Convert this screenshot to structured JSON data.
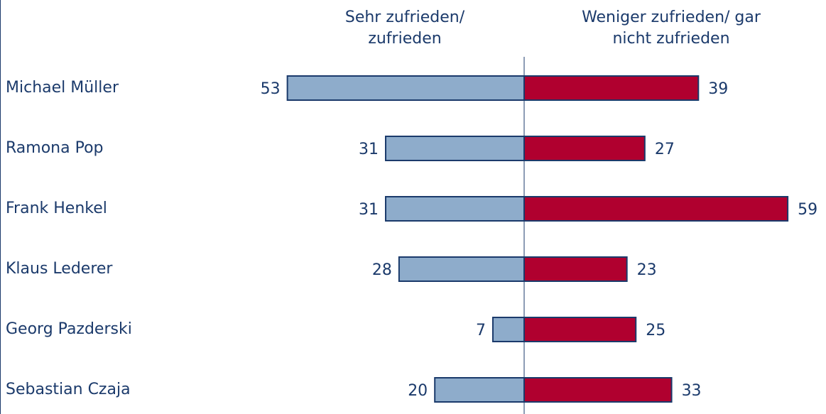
{
  "chart_data": {
    "type": "bar",
    "categories": [
      "Michael Müller",
      "Ramona Pop",
      "Frank Henkel",
      "Klaus Lederer",
      "Georg Pazderski",
      "Sebastian Czaja"
    ],
    "series": [
      {
        "name": "Sehr zufrieden/ zufrieden",
        "color": "#8eaccb",
        "values": [
          53,
          31,
          31,
          28,
          7,
          20
        ]
      },
      {
        "name": "Weniger zufrieden/ gar nicht zufrieden",
        "color": "#b0002f",
        "values": [
          39,
          27,
          59,
          23,
          25,
          33
        ]
      }
    ]
  }
}
